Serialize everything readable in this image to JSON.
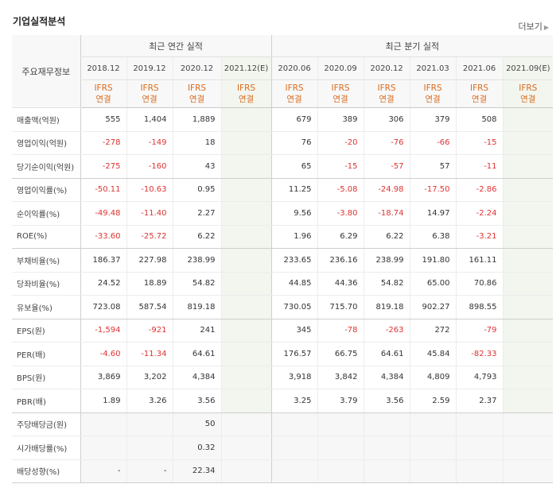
{
  "title": "기업실적분석",
  "more": "더보기",
  "header": {
    "label": "주요재무정보",
    "annual_group": "최근 연간 실적",
    "quarter_group": "최근 분기 실적",
    "periods": [
      "2018.12",
      "2019.12",
      "2020.12",
      "2021.12(E)",
      "2020.06",
      "2020.09",
      "2020.12",
      "2021.03",
      "2021.06",
      "2021.09(E)"
    ],
    "ifrs_top": "IFRS",
    "ifrs_bottom": "연결"
  },
  "rows": [
    {
      "label": "매출액(억원)",
      "values": [
        "555",
        "1,404",
        "1,889",
        "",
        "679",
        "389",
        "306",
        "379",
        "508",
        ""
      ]
    },
    {
      "label": "영업이익(억원)",
      "values": [
        "-278",
        "-149",
        "18",
        "",
        "76",
        "-20",
        "-76",
        "-66",
        "-15",
        ""
      ]
    },
    {
      "label": "당기순이익(억원)",
      "values": [
        "-275",
        "-160",
        "43",
        "",
        "65",
        "-15",
        "-57",
        "57",
        "-11",
        ""
      ]
    },
    {
      "label": "영업이익률(%)",
      "values": [
        "-50.11",
        "-10.63",
        "0.95",
        "",
        "11.25",
        "-5.08",
        "-24.98",
        "-17.50",
        "-2.86",
        ""
      ]
    },
    {
      "label": "순이익률(%)",
      "values": [
        "-49.48",
        "-11.40",
        "2.27",
        "",
        "9.56",
        "-3.80",
        "-18.74",
        "14.97",
        "-2.24",
        ""
      ]
    },
    {
      "label": "ROE(%)",
      "values": [
        "-33.60",
        "-25.72",
        "6.22",
        "",
        "1.96",
        "6.29",
        "6.22",
        "6.38",
        "-3.21",
        ""
      ]
    },
    {
      "label": "부채비율(%)",
      "values": [
        "186.37",
        "227.98",
        "238.99",
        "",
        "233.65",
        "236.16",
        "238.99",
        "191.80",
        "161.11",
        ""
      ]
    },
    {
      "label": "당좌비율(%)",
      "values": [
        "24.52",
        "18.89",
        "54.82",
        "",
        "44.85",
        "44.36",
        "54.82",
        "65.00",
        "70.86",
        ""
      ]
    },
    {
      "label": "유보율(%)",
      "values": [
        "723.08",
        "587.54",
        "819.18",
        "",
        "730.05",
        "715.70",
        "819.18",
        "902.27",
        "898.55",
        ""
      ]
    },
    {
      "label": "EPS(원)",
      "values": [
        "-1,594",
        "-921",
        "241",
        "",
        "345",
        "-78",
        "-263",
        "272",
        "-79",
        ""
      ]
    },
    {
      "label": "PER(배)",
      "values": [
        "-4.60",
        "-11.34",
        "64.61",
        "",
        "176.57",
        "66.75",
        "64.61",
        "45.84",
        "-82.33",
        ""
      ]
    },
    {
      "label": "BPS(원)",
      "values": [
        "3,869",
        "3,202",
        "4,384",
        "",
        "3,918",
        "3,842",
        "4,384",
        "4,809",
        "4,793",
        ""
      ]
    },
    {
      "label": "PBR(배)",
      "values": [
        "1.89",
        "3.26",
        "3.56",
        "",
        "3.25",
        "3.79",
        "3.56",
        "2.59",
        "2.37",
        ""
      ]
    },
    {
      "label": "주당배당금(원)",
      "values": [
        "",
        "",
        "50",
        "",
        "",
        "",
        "",
        "",
        "",
        ""
      ]
    },
    {
      "label": "시가배당률(%)",
      "values": [
        "",
        "",
        "0.32",
        "",
        "",
        "",
        "",
        "",
        "",
        ""
      ]
    },
    {
      "label": "배당성향(%)",
      "values": [
        "-",
        "-",
        "22.34",
        "",
        "",
        "",
        "",
        "",
        "",
        ""
      ]
    }
  ]
}
